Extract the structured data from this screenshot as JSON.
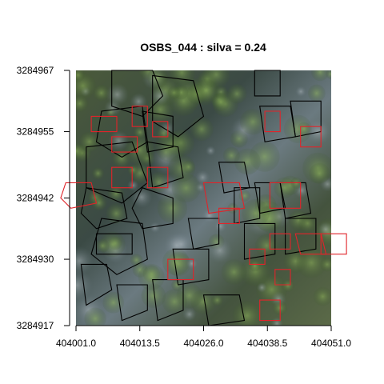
{
  "chart_data": {
    "type": "scatter",
    "title": "OSBS_044 : silva = 0.24",
    "xlabel": "",
    "ylabel": "",
    "xlim": [
      404001.0,
      404051.0
    ],
    "ylim": [
      3284917,
      3284967
    ],
    "x_ticks": [
      404001.0,
      404013.5,
      404026.0,
      404038.5,
      404051.0
    ],
    "x_tick_labels": [
      "404001.0",
      "404013.5",
      "404026.0",
      "404038.5",
      "404051.0"
    ],
    "y_ticks": [
      3284917,
      3284930,
      3284942,
      3284955,
      3284967
    ],
    "y_tick_labels": [
      "3284917",
      "3284930",
      "3284942",
      "3284955",
      "3284967"
    ],
    "background": "aerial RGB imagery of forest canopy",
    "colors": {
      "predicted_crowns": "#000000",
      "field_crowns": "#e0242a"
    },
    "series": [
      {
        "color": "#000000",
        "polygons": [
          [
            [
              404008,
              3284967
            ],
            [
              404016,
              3284967
            ],
            [
              404018,
              3284962
            ],
            [
              404014,
              3284958
            ],
            [
              404008,
              3284960
            ]
          ],
          [
            [
              404016,
              3284966
            ],
            [
              404024,
              3284965
            ],
            [
              404026,
              3284958
            ],
            [
              404021,
              3284954
            ],
            [
              404016,
              3284957
            ]
          ],
          [
            [
              404006,
              3284959
            ],
            [
              404014,
              3284960
            ],
            [
              404015,
              3284953
            ],
            [
              404010,
              3284950
            ],
            [
              404005,
              3284953
            ]
          ],
          [
            [
              404014,
              3284959
            ],
            [
              404020,
              3284958
            ],
            [
              404020,
              3284952
            ],
            [
              404015,
              3284951
            ]
          ],
          [
            [
              404003,
              3284952
            ],
            [
              404012,
              3284953
            ],
            [
              404015,
              3284945
            ],
            [
              404010,
              3284941
            ],
            [
              404003,
              3284944
            ]
          ],
          [
            [
              404015,
              3284953
            ],
            [
              404021,
              3284952
            ],
            [
              404022,
              3284946
            ],
            [
              404016,
              3284944
            ]
          ],
          [
            [
              404003,
              3284944
            ],
            [
              404010,
              3284943
            ],
            [
              404011,
              3284938
            ],
            [
              404005,
              3284936
            ],
            [
              404002,
              3284939
            ]
          ],
          [
            [
              404014,
              3284944
            ],
            [
              404020,
              3284942
            ],
            [
              404020,
              3284937
            ],
            [
              404014,
              3284936
            ],
            [
              404012,
              3284940
            ]
          ],
          [
            [
              404006,
              3284938
            ],
            [
              404014,
              3284937
            ],
            [
              404015,
              3284930
            ],
            [
              404009,
              3284927
            ],
            [
              404004,
              3284931
            ]
          ],
          [
            [
              404002,
              3284929
            ],
            [
              404007,
              3284929
            ],
            [
              404008,
              3284924
            ],
            [
              404003,
              3284921
            ]
          ],
          [
            [
              404009,
              3284925
            ],
            [
              404015,
              3284925
            ],
            [
              404015,
              3284920
            ],
            [
              404010,
              3284918
            ]
          ],
          [
            [
              404016,
              3284926
            ],
            [
              404022,
              3284926
            ],
            [
              404022,
              3284920
            ],
            [
              404017,
              3284918
            ]
          ],
          [
            [
              404020,
              3284932
            ],
            [
              404027,
              3284932
            ],
            [
              404027,
              3284926
            ],
            [
              404021,
              3284925
            ]
          ],
          [
            [
              404026,
              3284923
            ],
            [
              404033,
              3284923
            ],
            [
              404034,
              3284918
            ],
            [
              404027,
              3284917
            ]
          ],
          [
            [
              404029,
              3284949
            ],
            [
              404034,
              3284949
            ],
            [
              404035,
              3284944
            ],
            [
              404030,
              3284943
            ]
          ],
          [
            [
              404032,
              3284944
            ],
            [
              404037,
              3284944
            ],
            [
              404037,
              3284938
            ],
            [
              404032,
              3284937
            ]
          ],
          [
            [
              404036,
              3284945
            ],
            [
              404041,
              3284945
            ],
            [
              404042,
              3284940
            ],
            [
              404037,
              3284939
            ]
          ],
          [
            [
              404041,
              3284945
            ],
            [
              404046,
              3284945
            ],
            [
              404047,
              3284939
            ],
            [
              404042,
              3284938
            ]
          ],
          [
            [
              404034,
              3284937
            ],
            [
              404040,
              3284937
            ],
            [
              404040,
              3284931
            ],
            [
              404034,
              3284930
            ]
          ],
          [
            [
              404042,
              3284938
            ],
            [
              404048,
              3284938
            ],
            [
              404048,
              3284932
            ],
            [
              404042,
              3284931
            ]
          ],
          [
            [
              404037,
              3284960
            ],
            [
              404043,
              3284960
            ],
            [
              404044,
              3284954
            ],
            [
              404038,
              3284953
            ]
          ],
          [
            [
              404043,
              3284961
            ],
            [
              404049,
              3284961
            ],
            [
              404049,
              3284955
            ],
            [
              404044,
              3284954
            ]
          ],
          [
            [
              404036,
              3284967
            ],
            [
              404041,
              3284967
            ],
            [
              404041,
              3284962
            ],
            [
              404036,
              3284962
            ]
          ],
          [
            [
              404023,
              3284938
            ],
            [
              404029,
              3284938
            ],
            [
              404029,
              3284933
            ],
            [
              404024,
              3284932
            ]
          ],
          [
            [
              404005,
              3284935
            ],
            [
              404012,
              3284935
            ],
            [
              404012,
              3284931
            ],
            [
              404005,
              3284931
            ]
          ]
        ]
      },
      {
        "color": "#e0242a",
        "polygons": [
          [
            [
              404004,
              3284958
            ],
            [
              404009,
              3284958
            ],
            [
              404009,
              3284955
            ],
            [
              404004,
              3284955
            ]
          ],
          [
            [
              404012,
              3284960
            ],
            [
              404015,
              3284960
            ],
            [
              404015,
              3284956
            ],
            [
              404012,
              3284956
            ]
          ],
          [
            [
              404016,
              3284957
            ],
            [
              404019,
              3284957
            ],
            [
              404019,
              3284954
            ],
            [
              404016,
              3284954
            ]
          ],
          [
            [
              404008,
              3284954
            ],
            [
              404013,
              3284954
            ],
            [
              404013,
              3284951
            ],
            [
              404008,
              3284951
            ]
          ],
          [
            [
              404008,
              3284948
            ],
            [
              404012,
              3284948
            ],
            [
              404012,
              3284944
            ],
            [
              404008,
              3284944
            ]
          ],
          [
            [
              404015,
              3284948
            ],
            [
              404019,
              3284948
            ],
            [
              404019,
              3284944
            ],
            [
              404015,
              3284944
            ]
          ],
          [
            [
              403999,
              3284945
            ],
            [
              404004,
              3284945
            ],
            [
              404005,
              3284941
            ],
            [
              404000,
              3284940
            ],
            [
              403998,
              3284942
            ]
          ],
          [
            [
              404026,
              3284945
            ],
            [
              404033,
              3284945
            ],
            [
              404034,
              3284940
            ],
            [
              404027,
              3284939
            ]
          ],
          [
            [
              404029,
              3284940
            ],
            [
              404033,
              3284940
            ],
            [
              404033,
              3284937
            ],
            [
              404029,
              3284937
            ]
          ],
          [
            [
              404039,
              3284945
            ],
            [
              404045,
              3284945
            ],
            [
              404045,
              3284940
            ],
            [
              404039,
              3284940
            ]
          ],
          [
            [
              404039,
              3284935
            ],
            [
              404043,
              3284935
            ],
            [
              404043,
              3284932
            ],
            [
              404039,
              3284932
            ]
          ],
          [
            [
              404044,
              3284935
            ],
            [
              404049,
              3284935
            ],
            [
              404050,
              3284931
            ],
            [
              404045,
              3284931
            ]
          ],
          [
            [
              404049,
              3284935
            ],
            [
              404054,
              3284935
            ],
            [
              404054,
              3284931
            ],
            [
              404049,
              3284931
            ]
          ],
          [
            [
              404035,
              3284932
            ],
            [
              404038,
              3284932
            ],
            [
              404038,
              3284929
            ],
            [
              404035,
              3284929
            ]
          ],
          [
            [
              404040,
              3284928
            ],
            [
              404043,
              3284928
            ],
            [
              404043,
              3284925
            ],
            [
              404040,
              3284925
            ]
          ],
          [
            [
              404038,
              3284959
            ],
            [
              404041,
              3284959
            ],
            [
              404041,
              3284955
            ],
            [
              404038,
              3284955
            ]
          ],
          [
            [
              404045,
              3284956
            ],
            [
              404049,
              3284956
            ],
            [
              404049,
              3284952
            ],
            [
              404045,
              3284952
            ]
          ],
          [
            [
              404037,
              3284922
            ],
            [
              404041,
              3284922
            ],
            [
              404041,
              3284918
            ],
            [
              404037,
              3284918
            ]
          ],
          [
            [
              404019,
              3284930
            ],
            [
              404024,
              3284930
            ],
            [
              404024,
              3284926
            ],
            [
              404019,
              3284926
            ]
          ]
        ]
      }
    ]
  }
}
